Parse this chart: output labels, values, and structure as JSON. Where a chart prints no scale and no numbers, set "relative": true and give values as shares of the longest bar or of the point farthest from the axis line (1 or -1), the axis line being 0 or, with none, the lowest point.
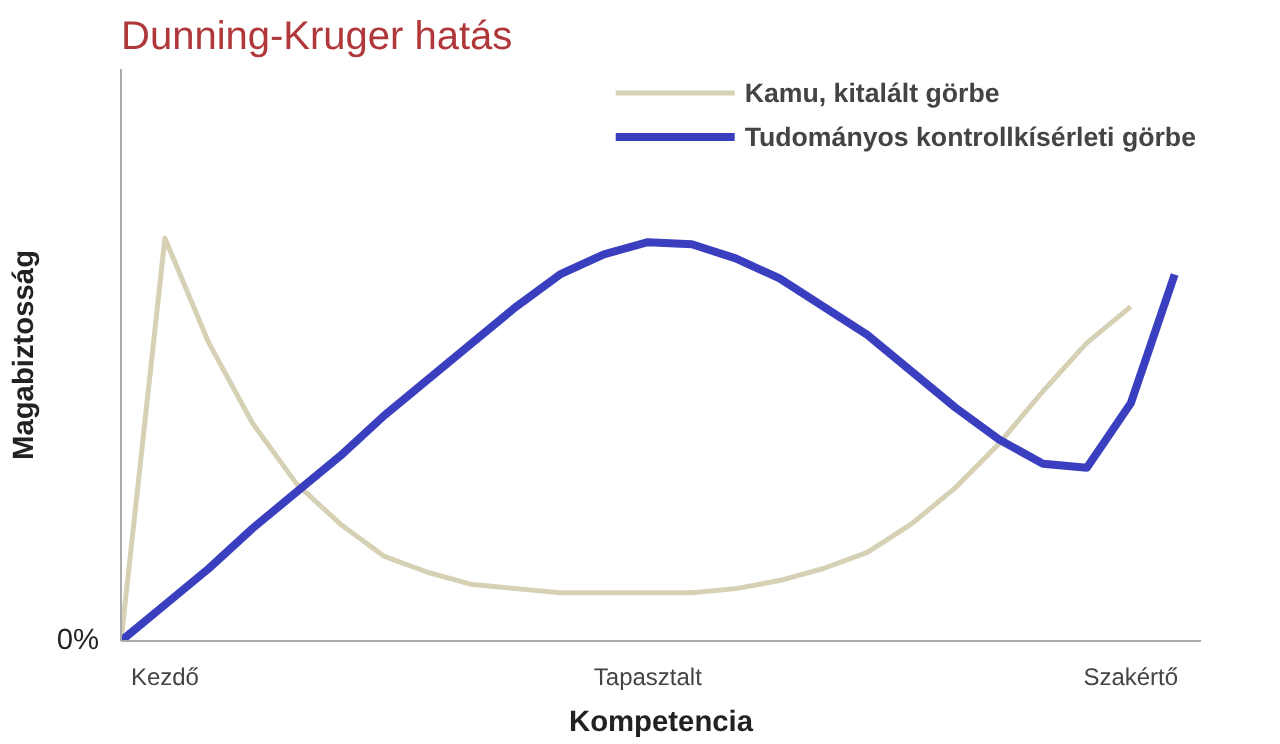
{
  "chart_data": {
    "type": "line",
    "title": "Dunning-Kruger hatás",
    "xlabel": "Kompetencia",
    "ylabel": "Magabiztosság",
    "categories": [
      null,
      "Kezdő",
      null,
      null,
      null,
      null,
      null,
      null,
      null,
      null,
      null,
      null,
      "Tapasztalt",
      null,
      null,
      null,
      null,
      null,
      null,
      null,
      null,
      null,
      null,
      "Szakértő",
      null
    ],
    "relative": true,
    "legend": "top right",
    "tick_labels": "x",
    "annotations": [
      "0%"
    ],
    "series": [
      {
        "name": "Kamu, kitalált görbe",
        "color": "#d6d0b4",
        "values": [
          0,
          1.0,
          0.74,
          0.54,
          0.39,
          0.29,
          0.21,
          0.17,
          0.14,
          0.13,
          0.12,
          0.12,
          0.12,
          0.12,
          0.13,
          0.15,
          0.18,
          0.22,
          0.29,
          0.38,
          0.49,
          0.62,
          0.74,
          0.83,
          null
        ]
      },
      {
        "name": "Tudományos kontrollkísérleti görbe",
        "color": "#3a3fbf",
        "values": [
          0,
          0.09,
          0.18,
          0.28,
          0.37,
          0.46,
          0.56,
          0.65,
          0.74,
          0.83,
          0.91,
          0.96,
          0.99,
          0.985,
          0.95,
          0.9,
          0.83,
          0.76,
          0.67,
          0.58,
          0.5,
          0.44,
          0.43,
          0.59,
          0.91
        ]
      }
    ]
  }
}
